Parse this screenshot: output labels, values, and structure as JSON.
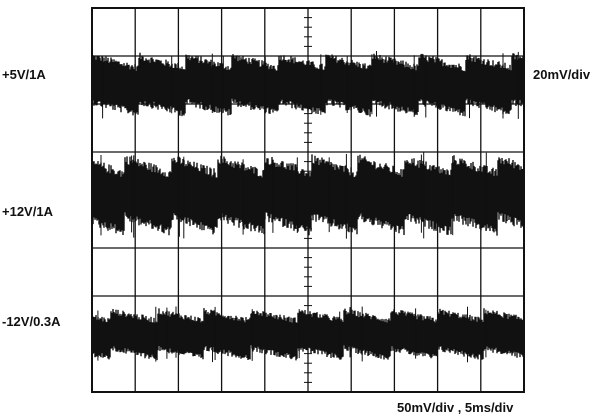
{
  "chart_data": {
    "type": "line",
    "title": "",
    "xlabel": "",
    "ylabel": "",
    "grid": true,
    "grid_divisions": {
      "x": 10,
      "y": 8
    },
    "x_scale_label": "50mV/div , 5ms/div",
    "right_scale_label": "20mV/div",
    "series": [
      {
        "name": "+5V/1A",
        "baseline_div": 1.6,
        "ripple_peak_to_peak_div": 1.1
      },
      {
        "name": "+12V/1A",
        "baseline_div": 3.9,
        "ripple_peak_to_peak_div": 1.4
      },
      {
        "name": "-12V/0.3A",
        "baseline_div": 6.8,
        "ripple_peak_to_peak_div": 0.9
      }
    ]
  },
  "colors": {
    "trace": "#111111",
    "grid": "#111111",
    "background": "#ffffff"
  }
}
